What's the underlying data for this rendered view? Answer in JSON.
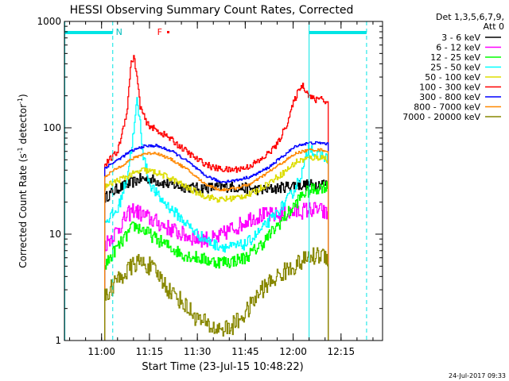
{
  "chart_data": {
    "type": "line",
    "title": "HESSI Observing Summary Count Rates, Corrected",
    "xlabel": "Start Time (23-Jul-15 10:48:22)",
    "ylabel_main": "Corrected Count Rate (s",
    "ylabel_sup1": "-1",
    "ylabel_mid": " detector",
    "ylabel_sup2": "-1",
    "ylabel_end": ")",
    "yscale": "log",
    "ylim": [
      1,
      1000
    ],
    "xlim": [
      "10:48:22",
      "12:28:00"
    ],
    "x_ticks": [
      {
        "t": "11:00",
        "label": "11:00"
      },
      {
        "t": "11:15",
        "label": "11:15"
      },
      {
        "t": "11:30",
        "label": "11:30"
      },
      {
        "t": "11:45",
        "label": "11:45"
      },
      {
        "t": "12:00",
        "label": "12:00"
      },
      {
        "t": "12:15",
        "label": "12:15"
      }
    ],
    "y_ticks": [
      {
        "v": 1,
        "label": "1"
      },
      {
        "v": 10,
        "label": "10"
      },
      {
        "v": 100,
        "label": "100"
      },
      {
        "v": 1000,
        "label": "1000"
      }
    ],
    "legend": {
      "placement": "right",
      "header": [
        "Det 1,3,5,6,7,9,",
        "Att 0"
      ],
      "entries": [
        {
          "label": "3 - 6 keV",
          "color": "#000000"
        },
        {
          "label": "6 - 12 keV",
          "color": "#ff00ff"
        },
        {
          "label": "12 - 25 keV",
          "color": "#00ff00"
        },
        {
          "label": "25 - 50 keV",
          "color": "#00ffff"
        },
        {
          "label": "50 - 100 keV",
          "color": "#dddd00"
        },
        {
          "label": "100 - 300 keV",
          "color": "#ff0000"
        },
        {
          "label": "300 - 800 keV",
          "color": "#0000ff"
        },
        {
          "label": "800 - 7000 keV",
          "color": "#ff8800"
        },
        {
          "label": "7000 - 20000 keV",
          "color": "#888800"
        }
      ]
    },
    "night_bars": [
      {
        "start": "10:48:22",
        "end": "11:03:30",
        "label": ""
      },
      {
        "start": "12:05:00",
        "end": "12:23:00",
        "label": ""
      }
    ],
    "night_marker_label": "N",
    "saa_lines": [
      "10:48:30",
      "11:03:30",
      "12:05:00",
      "12:23:00"
    ],
    "flare_label": "F",
    "flare_time": "11:20:00",
    "flare_level": 800,
    "series": [
      {
        "name": "3 - 6 keV",
        "color": "#000000",
        "noise": 0.12,
        "points": [
          [
            "11:01",
            22
          ],
          [
            "11:05",
            27
          ],
          [
            "11:09",
            30
          ],
          [
            "11:12",
            33
          ],
          [
            "11:15",
            33
          ],
          [
            "11:20",
            30
          ],
          [
            "11:25",
            28
          ],
          [
            "11:30",
            27
          ],
          [
            "11:40",
            28
          ],
          [
            "11:45",
            27
          ],
          [
            "11:50",
            26
          ],
          [
            "11:55",
            27
          ],
          [
            "12:00",
            29
          ],
          [
            "12:05",
            29
          ],
          [
            "12:09",
            30
          ],
          [
            "12:11",
            29
          ]
        ]
      },
      {
        "name": "6 - 12 keV",
        "color": "#ff00ff",
        "noise": 0.18,
        "points": [
          [
            "11:01",
            8
          ],
          [
            "11:05",
            11
          ],
          [
            "11:08",
            15
          ],
          [
            "11:10",
            17
          ],
          [
            "11:13",
            15
          ],
          [
            "11:17",
            13
          ],
          [
            "11:22",
            11
          ],
          [
            "11:25",
            10
          ],
          [
            "11:30",
            9
          ],
          [
            "11:36",
            9
          ],
          [
            "11:40",
            11
          ],
          [
            "11:43",
            12
          ],
          [
            "11:46",
            14
          ],
          [
            "11:50",
            15
          ],
          [
            "11:55",
            15
          ],
          [
            "12:00",
            16
          ],
          [
            "12:05",
            17
          ],
          [
            "12:08",
            17
          ],
          [
            "12:11",
            15
          ]
        ]
      },
      {
        "name": "12 - 25 keV",
        "color": "#00ff00",
        "noise": 0.14,
        "points": [
          [
            "11:01",
            5
          ],
          [
            "11:04",
            7
          ],
          [
            "11:07",
            9
          ],
          [
            "11:10",
            12
          ],
          [
            "11:13",
            11
          ],
          [
            "11:17",
            9
          ],
          [
            "11:20",
            8
          ],
          [
            "11:25",
            6.5
          ],
          [
            "11:30",
            6
          ],
          [
            "11:35",
            5.5
          ],
          [
            "11:40",
            5.5
          ],
          [
            "11:45",
            6
          ],
          [
            "11:50",
            8
          ],
          [
            "11:55",
            12
          ],
          [
            "12:00",
            18
          ],
          [
            "12:03",
            24
          ],
          [
            "12:06",
            26
          ],
          [
            "12:09",
            28
          ],
          [
            "12:11",
            28
          ]
        ]
      },
      {
        "name": "25 - 50 keV",
        "color": "#00ffff",
        "noise": 0.12,
        "points": [
          [
            "11:01",
            13
          ],
          [
            "11:05",
            17
          ],
          [
            "11:08",
            35
          ],
          [
            "11:10",
            90
          ],
          [
            "11:11",
            180
          ],
          [
            "11:12",
            110
          ],
          [
            "11:13",
            55
          ],
          [
            "11:15",
            30
          ],
          [
            "11:18",
            22
          ],
          [
            "11:22",
            17
          ],
          [
            "11:26",
            13
          ],
          [
            "11:30",
            10
          ],
          [
            "11:35",
            8
          ],
          [
            "11:40",
            7.5
          ],
          [
            "11:45",
            8
          ],
          [
            "11:50",
            11
          ],
          [
            "11:55",
            16
          ],
          [
            "12:00",
            25
          ],
          [
            "12:03",
            40
          ],
          [
            "12:05",
            70
          ],
          [
            "12:07",
            55
          ],
          [
            "12:09",
            55
          ],
          [
            "12:11",
            50
          ]
        ]
      },
      {
        "name": "50 - 100 keV",
        "color": "#dddd00",
        "noise": 0.07,
        "points": [
          [
            "11:01",
            28
          ],
          [
            "11:05",
            32
          ],
          [
            "11:09",
            36
          ],
          [
            "11:13",
            40
          ],
          [
            "11:17",
            38
          ],
          [
            "11:22",
            33
          ],
          [
            "11:27",
            27
          ],
          [
            "11:32",
            23
          ],
          [
            "11:37",
            21
          ],
          [
            "11:42",
            22
          ],
          [
            "11:47",
            24
          ],
          [
            "11:52",
            30
          ],
          [
            "11:57",
            38
          ],
          [
            "12:01",
            48
          ],
          [
            "12:05",
            52
          ],
          [
            "12:09",
            53
          ],
          [
            "12:11",
            50
          ]
        ]
      },
      {
        "name": "100 - 300 keV",
        "color": "#ff0000",
        "noise": 0.07,
        "points": [
          [
            "11:01",
            45
          ],
          [
            "11:05",
            60
          ],
          [
            "11:08",
            150
          ],
          [
            "11:09",
            380
          ],
          [
            "11:10",
            470
          ],
          [
            "11:11",
            300
          ],
          [
            "11:12",
            160
          ],
          [
            "11:14",
            110
          ],
          [
            "11:17",
            95
          ],
          [
            "11:20",
            85
          ],
          [
            "11:25",
            65
          ],
          [
            "11:30",
            50
          ],
          [
            "11:35",
            42
          ],
          [
            "11:40",
            40
          ],
          [
            "11:45",
            42
          ],
          [
            "11:50",
            50
          ],
          [
            "11:55",
            70
          ],
          [
            "11:58",
            110
          ],
          [
            "12:00",
            170
          ],
          [
            "12:02",
            240
          ],
          [
            "12:03",
            250
          ],
          [
            "12:05",
            200
          ],
          [
            "12:07",
            180
          ],
          [
            "12:08",
            195
          ],
          [
            "12:09",
            190
          ],
          [
            "12:10",
            175
          ],
          [
            "12:11",
            170
          ]
        ]
      },
      {
        "name": "300 - 800 keV",
        "color": "#0000ff",
        "noise": 0.03,
        "points": [
          [
            "11:01",
            42
          ],
          [
            "11:05",
            50
          ],
          [
            "11:09",
            60
          ],
          [
            "11:13",
            67
          ],
          [
            "11:17",
            68
          ],
          [
            "11:22",
            60
          ],
          [
            "11:27",
            48
          ],
          [
            "11:32",
            36
          ],
          [
            "11:37",
            31
          ],
          [
            "11:42",
            32
          ],
          [
            "11:47",
            35
          ],
          [
            "11:52",
            42
          ],
          [
            "11:57",
            55
          ],
          [
            "12:01",
            68
          ],
          [
            "12:05",
            72
          ],
          [
            "12:09",
            72
          ],
          [
            "12:11",
            70
          ]
        ]
      },
      {
        "name": "800 - 7000 keV",
        "color": "#ff8800",
        "noise": 0.03,
        "points": [
          [
            "11:01",
            35
          ],
          [
            "11:05",
            42
          ],
          [
            "11:09",
            50
          ],
          [
            "11:13",
            57
          ],
          [
            "11:17",
            58
          ],
          [
            "11:22",
            50
          ],
          [
            "11:27",
            40
          ],
          [
            "11:32",
            30
          ],
          [
            "11:37",
            26
          ],
          [
            "11:42",
            27
          ],
          [
            "11:47",
            30
          ],
          [
            "11:52",
            38
          ],
          [
            "11:57",
            48
          ],
          [
            "12:01",
            58
          ],
          [
            "12:05",
            62
          ],
          [
            "12:09",
            62
          ],
          [
            "12:11",
            60
          ]
        ]
      },
      {
        "name": "7000 - 20000 keV",
        "color": "#888800",
        "noise": 0.2,
        "points": [
          [
            "11:01",
            2.5
          ],
          [
            "11:04",
            3.5
          ],
          [
            "11:08",
            4.5
          ],
          [
            "11:11",
            5.5
          ],
          [
            "11:15",
            5
          ],
          [
            "11:18",
            4
          ],
          [
            "11:21",
            3
          ],
          [
            "11:24",
            2.5
          ],
          [
            "11:27",
            2
          ],
          [
            "11:30",
            1.6
          ],
          [
            "11:35",
            1.3
          ],
          [
            "11:40",
            1.3
          ],
          [
            "11:45",
            1.8
          ],
          [
            "11:50",
            3
          ],
          [
            "11:55",
            4
          ],
          [
            "12:00",
            5
          ],
          [
            "12:05",
            6
          ],
          [
            "12:09",
            6.5
          ],
          [
            "12:11",
            6
          ]
        ]
      }
    ]
  },
  "footer": {
    "timestamp": "24-Jul-2017 09:33"
  }
}
